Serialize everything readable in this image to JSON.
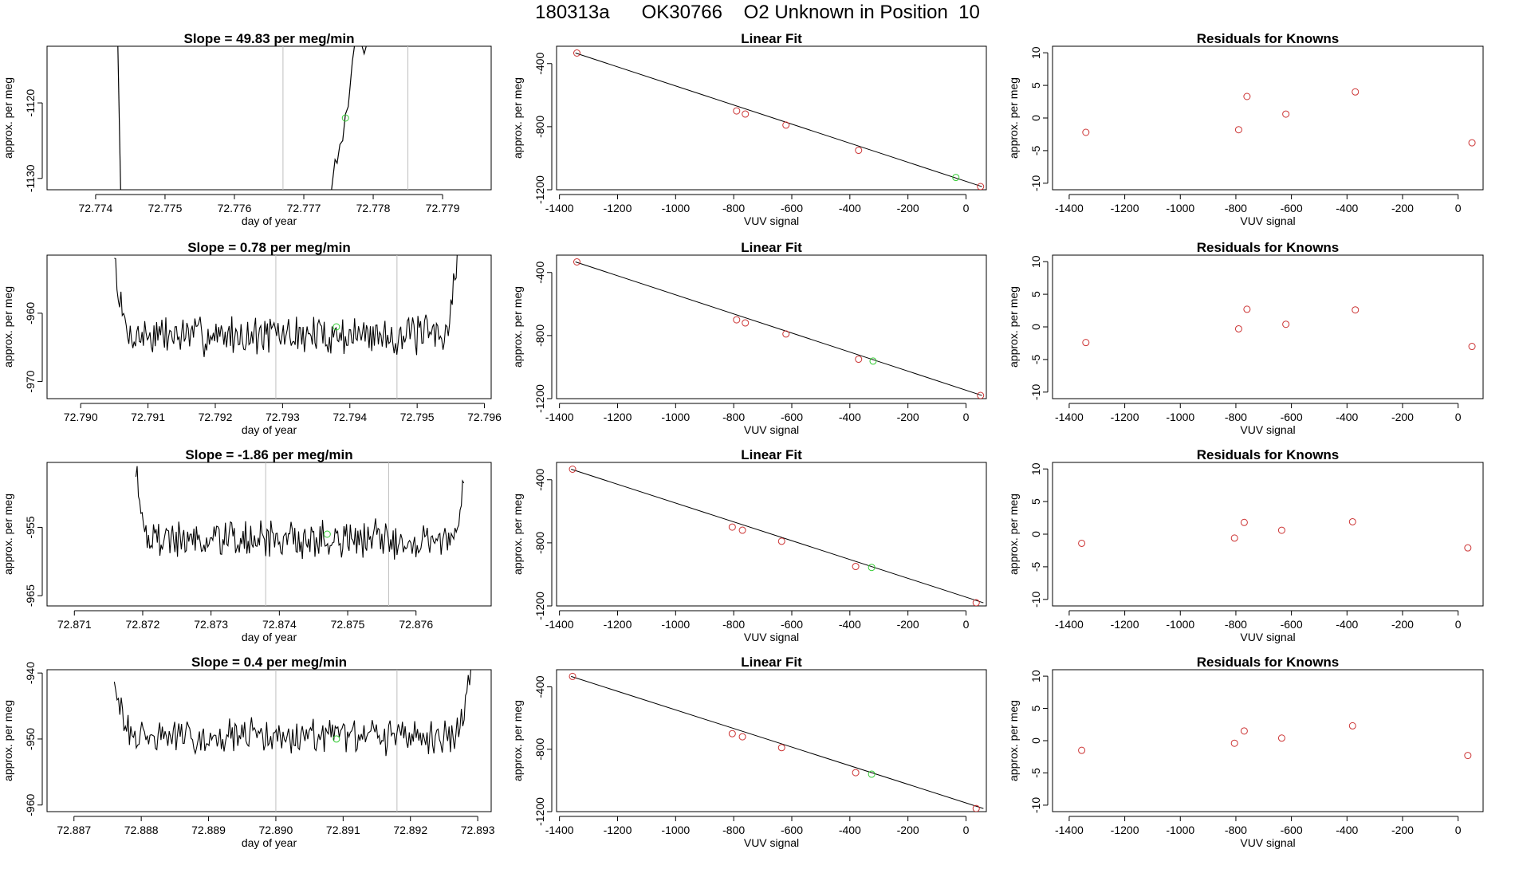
{
  "page": {
    "title": "180313a      OK30766    O2 Unknown in Position  10"
  },
  "colors": {
    "axis": "#000000",
    "trace": "#000000",
    "known_point": "#cc3333",
    "unknown_point": "#33cc33",
    "marker_line": "#bfbfbf",
    "fit_line": "#000000"
  },
  "chart_data": [
    {
      "type": "line",
      "row": 0,
      "panel": "trace",
      "title": "Slope =  49.83  per meg/min",
      "xlabel": "day of year",
      "ylabel": "approx. per meg",
      "xlim": [
        72.7733,
        72.7797
      ],
      "ylim": [
        -1131.5,
        -1112.5
      ],
      "xticks": [
        72.774,
        72.775,
        72.776,
        72.777,
        72.778,
        72.779
      ],
      "xtick_labels": [
        "72.774",
        "72.775",
        "72.776",
        "72.777",
        "72.778",
        "72.779"
      ],
      "yticks": [
        -1120,
        -1130
      ],
      "ytick_labels": [
        "-1120",
        "-1130"
      ],
      "markers": [
        72.7767,
        72.7785
      ],
      "unknown_point": {
        "x": 72.7776,
        "y": -1122
      },
      "trace_segments": [
        [
          [
            72.77432,
            -1112.5
          ],
          [
            72.77436,
            -1131.5
          ]
        ],
        [
          [
            72.7774,
            -1131.5
          ],
          [
            72.77745,
            -1127.5
          ],
          [
            72.77748,
            -1128.0
          ],
          [
            72.77752,
            -1125.5
          ],
          [
            72.77756,
            -1125.0
          ],
          [
            72.7776,
            -1121.5
          ],
          [
            72.77764,
            -1120.5
          ],
          [
            72.77766,
            -1118.5
          ],
          [
            72.7777,
            -1114.5
          ],
          [
            72.77773,
            -1112.5
          ]
        ],
        [
          [
            72.77784,
            -1112.5
          ],
          [
            72.77787,
            -1113.5
          ],
          [
            72.7779,
            -1112.5
          ]
        ]
      ]
    },
    {
      "type": "scatter",
      "row": 0,
      "panel": "fit",
      "title": "Linear Fit",
      "xlabel": "VUV signal",
      "ylabel": "approx. per meg",
      "xlim": [
        -1410,
        70
      ],
      "ylim": [
        -1200,
        -290
      ],
      "xticks": [
        -1400,
        -1200,
        -1000,
        -800,
        -600,
        -400,
        -200,
        0
      ],
      "xtick_labels": [
        "-1400",
        "-1200",
        "-1000",
        "-800",
        "-600",
        "-400",
        "-200",
        "0"
      ],
      "yticks": [
        -400,
        -800,
        -1200
      ],
      "ytick_labels": [
        "-400",
        "-800",
        "-1200"
      ],
      "fit_line": {
        "x": [
          -1345,
          55
        ],
        "y": [
          -333,
          -1180
        ]
      },
      "knowns": {
        "x": [
          -1340,
          -790,
          -760,
          -620,
          -370,
          50
        ],
        "y": [
          -333,
          -700,
          -720,
          -790,
          -950,
          -1180
        ]
      },
      "unknown": {
        "x": [
          -35
        ],
        "y": [
          -1122
        ]
      }
    },
    {
      "type": "scatter",
      "row": 0,
      "panel": "residuals",
      "title": "Residuals for Knowns",
      "xlabel": "VUV signal",
      "ylabel": "approx. per meg",
      "xlim": [
        -1460,
        90
      ],
      "ylim": [
        -11,
        11
      ],
      "xticks": [
        -1400,
        -1200,
        -1000,
        -800,
        -600,
        -400,
        -200,
        0
      ],
      "xtick_labels": [
        "-1400",
        "-1200",
        "-1000",
        "-800",
        "-600",
        "-400",
        "-200",
        "0"
      ],
      "yticks": [
        10,
        5,
        0,
        -5,
        -10
      ],
      "ytick_labels": [
        "10",
        "5",
        "0",
        "-5",
        "-10"
      ],
      "points": {
        "x": [
          -1340,
          -790,
          -760,
          -620,
          -370,
          50
        ],
        "y": [
          -2.2,
          -1.8,
          3.3,
          0.6,
          4.0,
          -3.8
        ]
      }
    },
    {
      "type": "line",
      "row": 1,
      "panel": "trace",
      "title": "Slope =  0.78  per meg/min",
      "xlabel": "day of year",
      "ylabel": "approx. per meg",
      "xlim": [
        72.7895,
        72.7961
      ],
      "ylim": [
        -972.5,
        -951.5
      ],
      "xticks": [
        72.79,
        72.791,
        72.792,
        72.793,
        72.794,
        72.795,
        72.796
      ],
      "xtick_labels": [
        "72.790",
        "72.791",
        "72.792",
        "72.793",
        "72.794",
        "72.795",
        "72.796"
      ],
      "yticks": [
        -960,
        -970
      ],
      "ytick_labels": [
        "-960",
        "-970"
      ],
      "markers": [
        72.7929,
        72.7947
      ],
      "unknown_point": {
        "x": 72.7938,
        "y": -962
      },
      "noise": {
        "start": 72.7905,
        "end": 72.7956,
        "mean": -963.2,
        "amp": 2.4,
        "seed": 7,
        "rise_left": -951.5,
        "rise_right": -951.5
      }
    },
    {
      "type": "scatter",
      "row": 1,
      "panel": "fit",
      "title": "Linear Fit",
      "xlabel": "VUV signal",
      "ylabel": "approx. per meg",
      "xlim": [
        -1410,
        70
      ],
      "ylim": [
        -1200,
        -290
      ],
      "xticks": [
        -1400,
        -1200,
        -1000,
        -800,
        -600,
        -400,
        -200,
        0
      ],
      "xtick_labels": [
        "-1400",
        "-1200",
        "-1000",
        "-800",
        "-600",
        "-400",
        "-200",
        "0"
      ],
      "yticks": [
        -400,
        -800,
        -1200
      ],
      "ytick_labels": [
        "-400",
        "-800",
        "-1200"
      ],
      "fit_line": {
        "x": [
          -1345,
          55
        ],
        "y": [
          -333,
          -1180
        ]
      },
      "knowns": {
        "x": [
          -1340,
          -790,
          -760,
          -620,
          -370,
          50
        ],
        "y": [
          -333,
          -700,
          -720,
          -790,
          -950,
          -1180
        ]
      },
      "unknown": {
        "x": [
          -320
        ],
        "y": [
          -962
        ]
      }
    },
    {
      "type": "scatter",
      "row": 1,
      "panel": "residuals",
      "title": "Residuals for Knowns",
      "xlabel": "VUV signal",
      "ylabel": "approx. per meg",
      "xlim": [
        -1460,
        90
      ],
      "ylim": [
        -11,
        11
      ],
      "xticks": [
        -1400,
        -1200,
        -1000,
        -800,
        -600,
        -400,
        -200,
        0
      ],
      "xtick_labels": [
        "-1400",
        "-1200",
        "-1000",
        "-800",
        "-600",
        "-400",
        "-200",
        "0"
      ],
      "yticks": [
        10,
        5,
        0,
        -5,
        -10
      ],
      "ytick_labels": [
        "10",
        "5",
        "0",
        "-5",
        "-10"
      ],
      "points": {
        "x": [
          -1340,
          -790,
          -760,
          -620,
          -370,
          50
        ],
        "y": [
          -2.4,
          -0.3,
          2.7,
          0.4,
          2.6,
          -3.0
        ]
      }
    },
    {
      "type": "line",
      "row": 2,
      "panel": "trace",
      "title": "Slope =  -1.86  per meg/min",
      "xlabel": "day of year",
      "ylabel": "approx. per meg",
      "xlim": [
        72.8706,
        72.8771
      ],
      "ylim": [
        -966.5,
        -945.5
      ],
      "xticks": [
        72.871,
        72.872,
        72.873,
        72.874,
        72.875,
        72.876
      ],
      "xtick_labels": [
        "72.871",
        "72.872",
        "72.873",
        "72.874",
        "72.875",
        "72.876"
      ],
      "yticks": [
        -955,
        -965
      ],
      "ytick_labels": [
        "-955",
        "-965"
      ],
      "markers": [
        72.8738,
        72.8756
      ],
      "unknown_point": {
        "x": 72.8747,
        "y": -956
      },
      "noise": {
        "start": 72.8719,
        "end": 72.8767,
        "mean": -956.8,
        "amp": 2.3,
        "seed": 19,
        "rise_left": -945.5,
        "rise_right": -948
      }
    },
    {
      "type": "scatter",
      "row": 2,
      "panel": "fit",
      "title": "Linear Fit",
      "xlabel": "VUV signal",
      "ylabel": "approx. per meg",
      "xlim": [
        -1410,
        70
      ],
      "ylim": [
        -1200,
        -290
      ],
      "xticks": [
        -1400,
        -1200,
        -1000,
        -800,
        -600,
        -400,
        -200,
        0
      ],
      "xtick_labels": [
        "-1400",
        "-1200",
        "-1000",
        "-800",
        "-600",
        "-400",
        "-200",
        "0"
      ],
      "yticks": [
        -400,
        -800,
        -1200
      ],
      "ytick_labels": [
        "-400",
        "-800",
        "-1200"
      ],
      "fit_line": {
        "x": [
          -1360,
          60
        ],
        "y": [
          -333,
          -1180
        ]
      },
      "knowns": {
        "x": [
          -1355,
          -805,
          -770,
          -635,
          -380,
          35
        ],
        "y": [
          -333,
          -700,
          -720,
          -790,
          -950,
          -1180
        ]
      },
      "unknown": {
        "x": [
          -325
        ],
        "y": [
          -956
        ]
      }
    },
    {
      "type": "scatter",
      "row": 2,
      "panel": "residuals",
      "title": "Residuals for Knowns",
      "xlabel": "VUV signal",
      "ylabel": "approx. per meg",
      "xlim": [
        -1460,
        90
      ],
      "ylim": [
        -11,
        11
      ],
      "xticks": [
        -1400,
        -1200,
        -1000,
        -800,
        -600,
        -400,
        -200,
        0
      ],
      "xtick_labels": [
        "-1400",
        "-1200",
        "-1000",
        "-800",
        "-600",
        "-400",
        "-200",
        "0"
      ],
      "yticks": [
        10,
        5,
        0,
        -5,
        -10
      ],
      "ytick_labels": [
        "10",
        "5",
        "0",
        "-5",
        "-10"
      ],
      "points": {
        "x": [
          -1355,
          -805,
          -770,
          -635,
          -380,
          35
        ],
        "y": [
          -1.4,
          -0.6,
          1.8,
          0.6,
          1.9,
          -2.1
        ]
      }
    },
    {
      "type": "line",
      "row": 3,
      "panel": "trace",
      "title": "Slope =  0.4  per meg/min",
      "xlabel": "day of year",
      "ylabel": "approx. per meg",
      "xlim": [
        72.8866,
        72.8932
      ],
      "ylim": [
        -961,
        -939.5
      ],
      "xticks": [
        72.887,
        72.888,
        72.889,
        72.89,
        72.891,
        72.892,
        72.893
      ],
      "xtick_labels": [
        "72.887",
        "72.888",
        "72.889",
        "72.890",
        "72.891",
        "72.892",
        "72.893"
      ],
      "yticks": [
        -940,
        -950,
        -960
      ],
      "ytick_labels": [
        "-940",
        "-950",
        "-960"
      ],
      "markers": [
        72.89,
        72.8918
      ],
      "unknown_point": {
        "x": 72.8909,
        "y": -950
      },
      "noise": {
        "start": 72.8876,
        "end": 72.8929,
        "mean": -949.6,
        "amp": 2.2,
        "seed": 31,
        "rise_left": -939.5,
        "rise_right": -939.5
      }
    },
    {
      "type": "scatter",
      "row": 3,
      "panel": "fit",
      "title": "Linear Fit",
      "xlabel": "VUV signal",
      "ylabel": "approx. per meg",
      "xlim": [
        -1410,
        70
      ],
      "ylim": [
        -1200,
        -290
      ],
      "xticks": [
        -1400,
        -1200,
        -1000,
        -800,
        -600,
        -400,
        -200,
        0
      ],
      "xtick_labels": [
        "-1400",
        "-1200",
        "-1000",
        "-800",
        "-600",
        "-400",
        "-200",
        "0"
      ],
      "yticks": [
        -400,
        -800,
        -1200
      ],
      "ytick_labels": [
        "-400",
        "-800",
        "-1200"
      ],
      "fit_line": {
        "x": [
          -1360,
          60
        ],
        "y": [
          -333,
          -1180
        ]
      },
      "knowns": {
        "x": [
          -1355,
          -805,
          -770,
          -635,
          -380,
          35
        ],
        "y": [
          -333,
          -700,
          -720,
          -790,
          -950,
          -1180
        ]
      },
      "unknown": {
        "x": [
          -325
        ],
        "y": [
          -960
        ]
      }
    },
    {
      "type": "scatter",
      "row": 3,
      "panel": "residuals",
      "title": "Residuals for Knowns",
      "xlabel": "VUV signal",
      "ylabel": "approx. per meg",
      "xlim": [
        -1460,
        90
      ],
      "ylim": [
        -11,
        11
      ],
      "xticks": [
        -1400,
        -1200,
        -1000,
        -800,
        -600,
        -400,
        -200,
        0
      ],
      "xtick_labels": [
        "-1400",
        "-1200",
        "-1000",
        "-800",
        "-600",
        "-400",
        "-200",
        "0"
      ],
      "yticks": [
        10,
        5,
        0,
        -5,
        -10
      ],
      "ytick_labels": [
        "10",
        "5",
        "0",
        "-5",
        "-10"
      ],
      "points": {
        "x": [
          -1355,
          -805,
          -770,
          -635,
          -380,
          35
        ],
        "y": [
          -1.5,
          -0.4,
          1.5,
          0.4,
          2.3,
          -2.3
        ]
      }
    }
  ]
}
